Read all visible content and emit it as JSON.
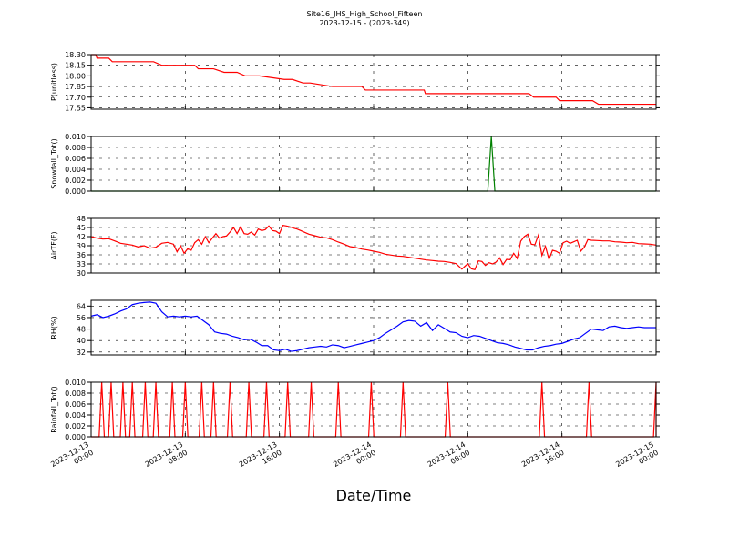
{
  "figure": {
    "title": "Site16_JHS_High_School_Fifteen",
    "subtitle": "2023-12-15 - (2023-349)",
    "xlabel": "Date/Time",
    "x_tick_labels": [
      [
        "2023-12-13",
        "00:00"
      ],
      [
        "2023-12-13",
        "08:00"
      ],
      [
        "2023-12-13",
        "16:00"
      ],
      [
        "2023-12-14",
        "00:00"
      ],
      [
        "2023-12-14",
        "08:00"
      ],
      [
        "2023-12-14",
        "16:00"
      ],
      [
        "2023-12-15",
        "00:00"
      ]
    ]
  },
  "chart_data": [
    {
      "type": "line",
      "ylabel": "P(unitless)",
      "color": "#ff0000",
      "ylim": [
        17.53,
        18.3
      ],
      "yticks": [
        17.55,
        17.7,
        17.85,
        18.0,
        18.15,
        18.3
      ],
      "ytick_labels": [
        "17.55",
        "17.70",
        "17.85",
        "18.00",
        "18.15",
        "18.30"
      ],
      "x_hours": [
        0,
        0.4,
        0.5,
        1.5,
        1.8,
        3.3,
        3.6,
        5.3,
        6.0,
        6.9,
        7.1,
        8.8,
        9.1,
        10.4,
        11.3,
        12.4,
        13.1,
        14.3,
        16.4,
        17.1,
        18.0,
        18.3,
        18.6,
        20.5,
        20.7,
        21.7,
        23.0,
        23.3,
        23.8,
        28.3,
        28.4,
        34.6,
        37.2,
        37.6,
        38.1,
        39.5,
        39.8,
        41.4,
        42.3,
        42.6,
        43.1,
        46.0,
        46.3,
        47.5,
        48.0
      ],
      "values": [
        18.3,
        18.3,
        18.25,
        18.25,
        18.2,
        18.2,
        18.2,
        18.2,
        18.15,
        18.15,
        18.15,
        18.15,
        18.1,
        18.1,
        18.05,
        18.05,
        18.0,
        18.0,
        17.95,
        17.95,
        17.9,
        17.9,
        17.9,
        17.85,
        17.85,
        17.85,
        17.85,
        17.8,
        17.8,
        17.8,
        17.75,
        17.75,
        17.75,
        17.7,
        17.7,
        17.7,
        17.65,
        17.65,
        17.65,
        17.65,
        17.6,
        17.6,
        17.6,
        17.6,
        17.6
      ]
    },
    {
      "type": "line",
      "ylabel": "Snowfall_Tot()",
      "color": "#008000",
      "ylim": [
        0,
        0.01
      ],
      "yticks": [
        0,
        0.002,
        0.004,
        0.006,
        0.008,
        0.01
      ],
      "ytick_labels": [
        "0.000",
        "0.002",
        "0.004",
        "0.006",
        "0.008",
        "0.010"
      ],
      "x_hours": [
        0,
        33.7,
        34.0,
        34.3,
        48.0
      ],
      "values": [
        0,
        0,
        0.01,
        0,
        0
      ]
    },
    {
      "type": "line",
      "ylabel": "AirTF(F)",
      "color": "#ff0000",
      "ylim": [
        30,
        48
      ],
      "yticks": [
        30,
        33,
        36,
        39,
        42,
        45,
        48
      ],
      "ytick_labels": [
        "30",
        "33",
        "36",
        "39",
        "42",
        "45",
        "48"
      ],
      "x_hours": [
        0,
        0.5,
        1.0,
        1.5,
        2.0,
        2.5,
        3.0,
        3.5,
        4.0,
        4.5,
        5.0,
        5.5,
        6.0,
        6.5,
        7.0,
        7.3,
        7.6,
        7.9,
        8.2,
        8.5,
        8.8,
        9.1,
        9.4,
        9.7,
        10.0,
        10.3,
        10.6,
        10.9,
        11.2,
        11.5,
        11.8,
        12.1,
        12.4,
        12.7,
        13.0,
        13.3,
        13.6,
        13.9,
        14.2,
        14.5,
        14.8,
        15.1,
        15.4,
        15.7,
        16.0,
        16.3,
        16.6,
        16.9,
        17.2,
        17.5,
        17.8,
        18.5,
        19.0,
        19.5,
        20.0,
        20.5,
        21.0,
        21.5,
        22.0,
        22.5,
        23.0,
        23.5,
        24.0,
        24.5,
        25.0,
        25.5,
        26.0,
        26.5,
        27.0,
        27.5,
        28.0,
        28.5,
        29.0,
        29.5,
        30.0,
        30.5,
        31.0,
        31.5,
        32.0,
        32.3,
        32.6,
        32.9,
        33.2,
        33.5,
        33.8,
        34.1,
        34.4,
        34.7,
        35.0,
        35.3,
        35.6,
        35.9,
        36.2,
        36.5,
        36.8,
        37.1,
        37.4,
        37.7,
        38.0,
        38.3,
        38.6,
        38.9,
        39.2,
        39.5,
        39.8,
        40.1,
        40.4,
        40.7,
        41.0,
        41.3,
        41.6,
        41.9,
        42.2,
        42.5,
        43.0,
        43.5,
        44.0,
        44.5,
        45.0,
        45.5,
        46.0,
        46.5,
        47.0,
        47.5,
        48.0
      ],
      "values": [
        42,
        41.5,
        41.2,
        41.3,
        40.6,
        39.8,
        39.5,
        39.2,
        38.6,
        39.0,
        38.2,
        38.5,
        39.8,
        40.1,
        39.5,
        37.0,
        39.0,
        36.5,
        38.0,
        37.5,
        40.0,
        41.0,
        39.5,
        42.0,
        40.0,
        41.5,
        43.0,
        41.5,
        42.0,
        42.2,
        43.5,
        45.0,
        43.0,
        45.2,
        43.0,
        42.8,
        43.5,
        42.5,
        44.5,
        44.0,
        44.3,
        45.5,
        44.0,
        43.8,
        43.0,
        45.7,
        45.5,
        45.2,
        44.8,
        44.5,
        44.0,
        42.8,
        42.3,
        41.8,
        41.6,
        41.0,
        40.2,
        39.5,
        38.7,
        38.4,
        37.9,
        37.6,
        37.2,
        36.8,
        36.2,
        35.9,
        35.6,
        35.5,
        35.2,
        34.9,
        34.6,
        34.3,
        34.1,
        33.9,
        33.8,
        33.5,
        33.1,
        31.3,
        33.1,
        31.4,
        31.1,
        34.0,
        33.8,
        32.5,
        33.4,
        33.0,
        33.6,
        35.0,
        32.8,
        34.5,
        34.4,
        36.5,
        34.8,
        40.5,
        42.0,
        42.8,
        39.5,
        39.3,
        42.5,
        35.8,
        38.8,
        34.5,
        37.5,
        37.2,
        36.5,
        40.0,
        40.5,
        39.8,
        40.3,
        40.8,
        37.2,
        38.5,
        41.0,
        40.8,
        40.7,
        40.6,
        40.6,
        40.3,
        40.2,
        40.0,
        40.1,
        39.7,
        39.6,
        39.5,
        39.2
      ]
    },
    {
      "type": "line",
      "ylabel": "RH(%)",
      "color": "#0000ff",
      "ylim": [
        30,
        68
      ],
      "yticks": [
        32,
        40,
        48,
        56,
        64
      ],
      "ytick_labels": [
        "32",
        "40",
        "48",
        "56",
        "64"
      ],
      "x_hours": [
        0,
        0.5,
        1.0,
        1.5,
        2.0,
        2.5,
        3.0,
        3.5,
        4.0,
        4.5,
        5.0,
        5.5,
        6.0,
        6.5,
        7.0,
        7.5,
        8.0,
        8.5,
        9.0,
        9.5,
        10.0,
        10.5,
        11.0,
        11.5,
        12.0,
        12.5,
        13.0,
        13.5,
        14.0,
        14.5,
        15.0,
        15.5,
        16.0,
        16.5,
        17.0,
        17.5,
        18.0,
        18.5,
        19.0,
        19.5,
        20.0,
        20.5,
        21.0,
        21.5,
        22.0,
        22.5,
        23.0,
        23.5,
        24.0,
        24.5,
        25.0,
        25.5,
        26.0,
        26.5,
        27.0,
        27.5,
        28.0,
        28.5,
        29.0,
        29.5,
        30.0,
        30.5,
        31.0,
        31.5,
        32.0,
        32.5,
        33.0,
        33.5,
        34.0,
        34.5,
        35.0,
        35.5,
        36.0,
        36.5,
        37.0,
        37.5,
        38.0,
        38.5,
        39.0,
        39.5,
        40.0,
        40.5,
        41.0,
        41.5,
        42.0,
        42.5,
        43.0,
        43.5,
        44.0,
        44.5,
        45.0,
        45.5,
        46.0,
        46.5,
        47.0,
        47.5,
        48.0
      ],
      "values": [
        57,
        58,
        56,
        57,
        58.5,
        60.5,
        62,
        65,
        66,
        66.5,
        66.8,
        66,
        60,
        56.5,
        57,
        56.5,
        57,
        56.5,
        57,
        54,
        51,
        46,
        45,
        44.5,
        43,
        42,
        40.5,
        41,
        39,
        36.5,
        36.5,
        33.5,
        33,
        34,
        32.5,
        33,
        34,
        35,
        35.5,
        36,
        35.5,
        37,
        36.5,
        35,
        36,
        37,
        38,
        39,
        40,
        42,
        45,
        47.5,
        50,
        53,
        54,
        53.5,
        50,
        52.5,
        47,
        51,
        48.5,
        46,
        45.5,
        43,
        42,
        43.5,
        43,
        41.5,
        40,
        38.5,
        38,
        37,
        35.5,
        34.5,
        33.5,
        33.5,
        35,
        36,
        36.5,
        37.5,
        38,
        39.5,
        41,
        42,
        45,
        48,
        47.5,
        47,
        49.5,
        50,
        49,
        48.5,
        49,
        49.5,
        49,
        49,
        49
      ]
    },
    {
      "type": "line",
      "ylabel": "Rainfall_Tot()",
      "color": "#ff0000",
      "ylim": [
        0,
        0.01
      ],
      "yticks": [
        0,
        0.002,
        0.004,
        0.006,
        0.008,
        0.01
      ],
      "ytick_labels": [
        "0.000",
        "0.002",
        "0.004",
        "0.006",
        "0.008",
        "0.010"
      ],
      "spike_hours": [
        0.9,
        1.7,
        2.7,
        3.5,
        4.6,
        5.5,
        6.9,
        8.0,
        9.4,
        10.4,
        11.8,
        13.4,
        14.9,
        16.7,
        18.7,
        21.0,
        23.8,
        26.5,
        30.3,
        38.3,
        42.3,
        48.0
      ],
      "spike_value": 0.01,
      "spike_halfwidth_hours": 0.22
    }
  ]
}
